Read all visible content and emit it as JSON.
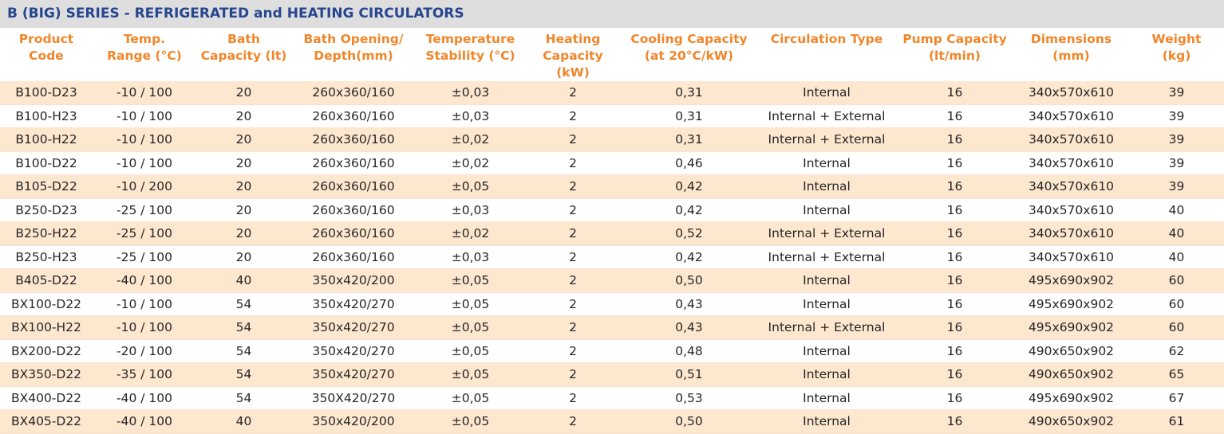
{
  "title": "B (BIG) SERIES - REFRIGERATED and HEATING CIRCULATORS",
  "colors": {
    "title_text": "#26468f",
    "title_bg": "#dedede",
    "header_text": "#f0862a",
    "row_stripe": "#fde7cf",
    "body_text": "#262626"
  },
  "columns": [
    {
      "line1": "Product",
      "line2": "Code"
    },
    {
      "line1": "Temp.",
      "line2": "Range (°C)"
    },
    {
      "line1": "Bath",
      "line2": "Capacity (lt)"
    },
    {
      "line1": "Bath Opening/",
      "line2": "Depth(mm)"
    },
    {
      "line1": "Temperature",
      "line2": "Stability (°C)"
    },
    {
      "line1": "Heating",
      "line2": "Capacity (kW)"
    },
    {
      "line1": "Cooling Capacity",
      "line2": "(at 20°C/kW)"
    },
    {
      "line1": "Circulation Type",
      "line2": ""
    },
    {
      "line1": "Pump Capacity",
      "line2": "(lt/min)"
    },
    {
      "line1": "Dimensions",
      "line2": "(mm)"
    },
    {
      "line1": "Weight",
      "line2": "(kg)"
    }
  ],
  "rows": [
    [
      "B100-D23",
      "-10 / 100",
      "20",
      "260x360/160",
      "±0,03",
      "2",
      "0,31",
      "Internal",
      "16",
      "340x570x610",
      "39"
    ],
    [
      "B100-H23",
      "-10 / 100",
      "20",
      "260x360/160",
      "±0,03",
      "2",
      "0,31",
      "Internal + External",
      "16",
      "340x570x610",
      "39"
    ],
    [
      "B100-H22",
      "-10 / 100",
      "20",
      "260x360/160",
      "±0,02",
      "2",
      "0,31",
      "Internal + External",
      "16",
      "340x570x610",
      "39"
    ],
    [
      "B100-D22",
      "-10 / 100",
      "20",
      "260x360/160",
      "±0,02",
      "2",
      "0,46",
      "Internal",
      "16",
      "340x570x610",
      "39"
    ],
    [
      "B105-D22",
      "-10 / 200",
      "20",
      "260x360/160",
      "±0,05",
      "2",
      "0,42",
      "Internal",
      "16",
      "340x570x610",
      "39"
    ],
    [
      "B250-D23",
      "-25 / 100",
      "20",
      "260x360/160",
      "±0,03",
      "2",
      "0,42",
      "Internal",
      "16",
      "340x570x610",
      "40"
    ],
    [
      "B250-H22",
      "-25 / 100",
      "20",
      "260x360/160",
      "±0,02",
      "2",
      "0,52",
      "Internal + External",
      "16",
      "340x570x610",
      "40"
    ],
    [
      "B250-H23",
      "-25 / 100",
      "20",
      "260x360/160",
      "±0,03",
      "2",
      "0,42",
      "Internal + External",
      "16",
      "340x570x610",
      "40"
    ],
    [
      "B405-D22",
      "-40 / 100",
      "40",
      "350x420/200",
      "±0,05",
      "2",
      "0,50",
      "Internal",
      "16",
      "495x690x902",
      "60"
    ],
    [
      "BX100-D22",
      "-10 / 100",
      "54",
      "350x420/270",
      "±0,05",
      "2",
      "0,43",
      "Internal",
      "16",
      "495x690x902",
      "60"
    ],
    [
      "BX100-H22",
      "-10 / 100",
      "54",
      "350x420/270",
      "±0,05",
      "2",
      "0,43",
      "Internal + External",
      "16",
      "495x690x902",
      "60"
    ],
    [
      "BX200-D22",
      "-20 / 100",
      "54",
      "350x420/270",
      "±0,05",
      "2",
      "0,48",
      "Internal",
      "16",
      "490x650x902",
      "62"
    ],
    [
      "BX350-D22",
      "-35 / 100",
      "54",
      "350x420/270",
      "±0,05",
      "2",
      "0,51",
      "Internal",
      "16",
      "490x650x902",
      "65"
    ],
    [
      "BX400-D22",
      "-40 / 100",
      "54",
      "350X420/270",
      "±0,05",
      "2",
      "0,53",
      "Internal",
      "16",
      "495x690x902",
      "67"
    ],
    [
      "BX405-D22",
      "-40 / 100",
      "40",
      "350x420/200",
      "±0,05",
      "2",
      "0,50",
      "Internal",
      "16",
      "490x650x902",
      "61"
    ]
  ]
}
